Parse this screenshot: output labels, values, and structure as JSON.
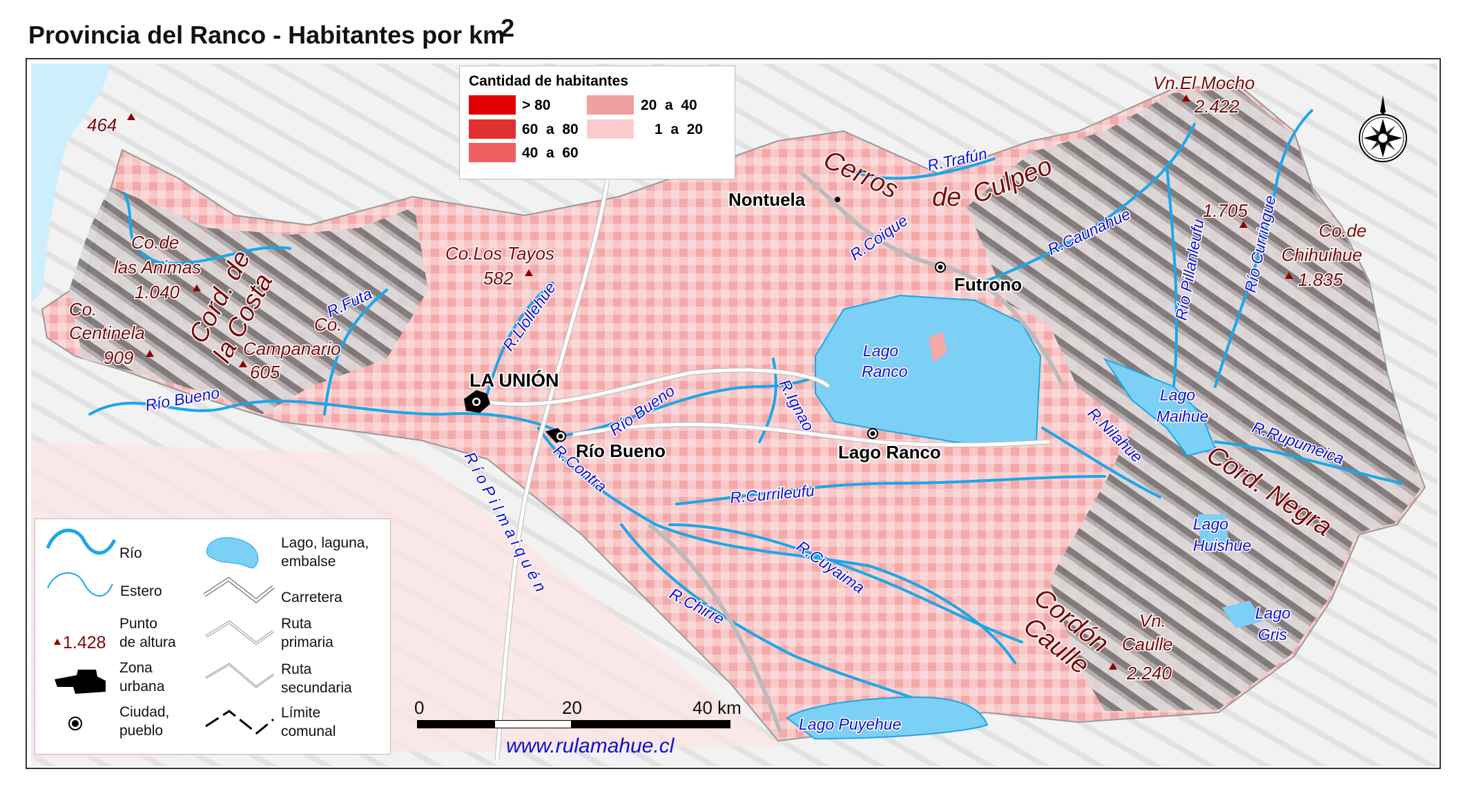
{
  "title": {
    "text": "Provincia del Ranco - Habitantes por km",
    "superscript": "2"
  },
  "density_legend": {
    "title": "Cantidad de habitantes",
    "classes": [
      {
        "label": "> 80",
        "color": "#e00000"
      },
      {
        "label": "60  a  80",
        "color": "#e03030"
      },
      {
        "label": "40  a  60",
        "color": "#f06060"
      },
      {
        "label": "20  a  40",
        "color": "#f0a0a0"
      },
      {
        "label": "1  a  20",
        "color": "#fccccc"
      }
    ]
  },
  "symbol_legend": {
    "rio": "Río",
    "estero": "Estero",
    "altura_sample": "1.428",
    "altura_1": "Punto",
    "altura_2": "de altura",
    "urbana_1": "Zona",
    "urbana_2": "urbana",
    "ciudad_1": "Ciudad,",
    "ciudad_2": "pueblo",
    "lago_1": "Lago, laguna,",
    "lago_2": "embalse",
    "carretera": "Carretera",
    "primaria_1": "Ruta",
    "primaria_2": "primaria",
    "secundaria_1": "Ruta",
    "secundaria_2": "secundaria",
    "limite_1": "Límite",
    "limite_2": "comunal"
  },
  "scale_bar": {
    "t0": "0",
    "t1": "20",
    "t2": "40 km"
  },
  "credit": "www.rulamahue.cl",
  "colors": {
    "water": "#7ccff5",
    "river": "#1aa7ea",
    "label_blue": "#1010d0",
    "label_red": "#7a0a0a"
  },
  "labels": {
    "cities": {
      "la_union": "LA UNIÓN",
      "rio_bueno": "Río Bueno",
      "lago_ranco": "Lago Ranco",
      "futrono": "Futrono",
      "nontuela": "Nontuela"
    },
    "peaks": {
      "p464": "464",
      "animas_1": "Co.de",
      "animas_2": "las Animas",
      "animas_h": "1.040",
      "centinela_1": "Co.",
      "centinela_2": "Centinela",
      "centinela_h": "909",
      "campanario_1": "Co.",
      "campanario_2": "Campanario",
      "campanario_h": "605",
      "tayos": "Co.Los Tayos",
      "tayos_h": "582",
      "mocho": "Vn.El Mocho",
      "mocho_h": "2.422",
      "p1705": "1.705",
      "chihuihue_1": "Co.de",
      "chihuihue_2": "Chihuihue",
      "chihuihue_h": "1.835",
      "caulle_1": "Vn.",
      "caulle_2": "Caulle",
      "caulle_h": "2.240"
    },
    "ranges": {
      "cord_costa_1": "Cord. de",
      "cord_costa_2": "la Costa",
      "cerros": "Cerros",
      "de": "de",
      "culpeo": "Culpeo",
      "cord_negra": "Cord. Negra",
      "cordon": "Cordón",
      "caulle": "Caulle"
    },
    "rivers": {
      "rio_bueno_w": "Río Bueno",
      "futa": "R.Futa",
      "llollehue": "R.Llollehue",
      "rio_bueno_c": "Río Bueno",
      "contra": "R.Contra",
      "pilmaiquen": "R í o   P i l m a i q u é n",
      "ignao": "R.Ignao",
      "currileufu": "R.Currileufu",
      "cuyaima": "R.Cuyaima",
      "chirre": "R.Chirre",
      "trafun": "R.Trafún",
      "coique": "R.Coique",
      "caunahue": "R.Caunahue",
      "pillanleufu": "Río Pillanleufu",
      "curringue": "Río Curringue",
      "nilahue": "R.Nilahue",
      "rupumeica": "R.Rupumeica"
    },
    "lakes": {
      "ranco_1": "Lago",
      "ranco_2": "Ranco",
      "maihue_1": "Lago",
      "maihue_2": "Maihue",
      "huishue_1": "Lago",
      "huishue_2": "Huishue",
      "gris_1": "Lago",
      "gris_2": "Gris",
      "puyehue": "Lago Puyehue"
    }
  }
}
